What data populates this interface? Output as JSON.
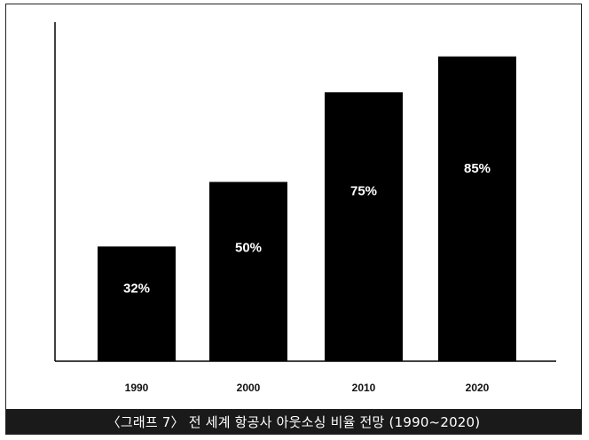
{
  "chart_data": {
    "type": "bar",
    "categories": [
      "1990",
      "2000",
      "2010",
      "2020"
    ],
    "values": [
      32,
      50,
      75,
      85
    ],
    "value_labels": [
      "32%",
      "50%",
      "75%",
      "85%"
    ],
    "title": "",
    "xlabel": "",
    "ylabel": "",
    "ylim": [
      0,
      100
    ],
    "grid": false,
    "legend": "none",
    "bar_color": "#000000",
    "label_color": "#ffffff"
  },
  "caption": {
    "text": "〈그래프 7〉 전 세계 항공사 아웃소싱 비율 전망 (1990~2020)"
  }
}
